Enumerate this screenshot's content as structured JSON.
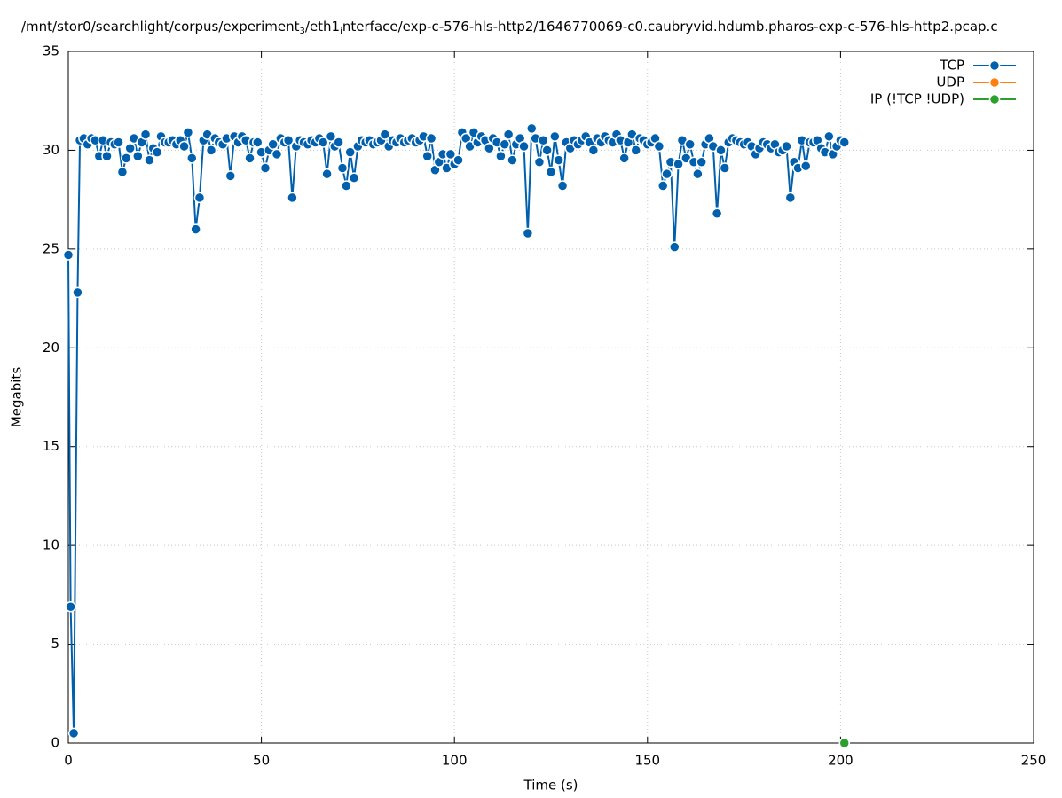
{
  "chart_data": {
    "type": "line",
    "title": [
      "/mnt/stor0/searchlight/corpus/experiment",
      "3",
      "/eth1",
      "i",
      "nterface/exp-c-576-hls-http2/1646770069-c0.caubryvid.hdumb.pharos-exp-c-576-hls-http2.pcap.c"
    ],
    "x_label": "Time (s)",
    "y_label": "Megabits",
    "xlim": [
      0,
      250
    ],
    "xticks": [
      0,
      50,
      100,
      150,
      200,
      250
    ],
    "ylim": [
      0,
      35
    ],
    "yticks": [
      0,
      5,
      10,
      15,
      20,
      25,
      30,
      35
    ],
    "grid": true,
    "legend": "top-right",
    "series": [
      {
        "name": "TCP",
        "color": "#0060ad",
        "x": [
          0,
          0.6,
          1.4,
          2.4,
          3,
          4,
          5,
          6,
          7,
          8,
          9,
          10,
          11,
          12,
          13,
          14,
          15,
          16,
          17,
          18,
          19,
          20,
          21,
          22,
          23,
          24,
          25,
          26,
          27,
          28,
          29,
          30,
          31,
          32,
          33,
          34,
          35,
          36,
          37,
          38,
          39,
          40,
          41,
          42,
          43,
          44,
          45,
          46,
          47,
          48,
          49,
          50,
          51,
          52,
          53,
          54,
          55,
          56,
          57,
          58,
          59,
          60,
          61,
          62,
          63,
          64,
          65,
          66,
          67,
          68,
          69,
          70,
          71,
          72,
          73,
          74,
          75,
          76,
          77,
          78,
          79,
          80,
          81,
          82,
          83,
          84,
          85,
          86,
          87,
          88,
          89,
          90,
          91,
          92,
          93,
          94,
          95,
          96,
          97,
          98,
          99,
          100,
          101,
          102,
          103,
          104,
          105,
          106,
          107,
          108,
          109,
          110,
          111,
          112,
          113,
          114,
          115,
          116,
          117,
          118,
          119,
          120,
          121,
          122,
          123,
          124,
          125,
          126,
          127,
          128,
          129,
          130,
          131,
          132,
          133,
          134,
          135,
          136,
          137,
          138,
          139,
          140,
          141,
          142,
          143,
          144,
          145,
          146,
          147,
          148,
          149,
          150,
          151,
          152,
          153,
          154,
          155,
          156,
          157,
          158,
          159,
          160,
          161,
          162,
          163,
          164,
          165,
          166,
          167,
          168,
          169,
          170,
          171,
          172,
          173,
          174,
          175,
          176,
          177,
          178,
          179,
          180,
          181,
          182,
          183,
          184,
          185,
          186,
          187,
          188,
          189,
          190,
          191,
          192,
          193,
          194,
          195,
          196,
          197,
          198,
          199,
          200,
          201
        ],
        "values": [
          24.7,
          6.9,
          0.5,
          22.8,
          30.5,
          30.6,
          30.3,
          30.6,
          30.5,
          29.7,
          30.5,
          29.7,
          30.4,
          30.3,
          30.4,
          28.9,
          29.6,
          30.1,
          30.6,
          29.7,
          30.4,
          30.8,
          29.5,
          30.1,
          29.9,
          30.7,
          30.4,
          30.4,
          30.5,
          30.3,
          30.5,
          30.2,
          30.9,
          29.6,
          26.0,
          27.6,
          30.5,
          30.8,
          30.0,
          30.6,
          30.4,
          30.3,
          30.6,
          28.7,
          30.7,
          30.4,
          30.7,
          30.5,
          29.6,
          30.4,
          30.4,
          29.9,
          29.1,
          30.0,
          30.3,
          29.8,
          30.6,
          30.4,
          30.5,
          27.6,
          30.2,
          30.5,
          30.4,
          30.3,
          30.5,
          30.4,
          30.6,
          30.4,
          28.8,
          30.7,
          30.2,
          30.4,
          29.1,
          28.2,
          29.9,
          28.6,
          30.2,
          30.5,
          30.4,
          30.5,
          30.3,
          30.4,
          30.5,
          30.8,
          30.2,
          30.5,
          30.4,
          30.6,
          30.4,
          30.5,
          30.6,
          30.4,
          30.5,
          30.7,
          29.7,
          30.6,
          29.0,
          29.4,
          29.8,
          29.1,
          29.8,
          29.3,
          29.5,
          30.9,
          30.6,
          30.2,
          30.9,
          30.4,
          30.7,
          30.5,
          30.1,
          30.6,
          30.4,
          29.7,
          30.3,
          30.8,
          29.5,
          30.3,
          30.6,
          30.2,
          25.8,
          31.1,
          30.6,
          29.4,
          30.5,
          30.0,
          28.9,
          30.7,
          29.5,
          28.2,
          30.4,
          30.1,
          30.5,
          30.3,
          30.5,
          30.7,
          30.4,
          30.0,
          30.6,
          30.4,
          30.7,
          30.5,
          30.4,
          30.8,
          30.5,
          29.6,
          30.4,
          30.8,
          30.0,
          30.6,
          30.5,
          30.3,
          30.4,
          30.6,
          30.2,
          28.2,
          28.8,
          29.4,
          25.1,
          29.3,
          30.5,
          29.6,
          30.3,
          29.4,
          28.8,
          29.4,
          30.3,
          30.6,
          30.2,
          26.8,
          30.0,
          29.1,
          30.4,
          30.6,
          30.5,
          30.4,
          30.3,
          30.4,
          30.2,
          29.8,
          30.1,
          30.4,
          30.3,
          30.1,
          30.3,
          29.9,
          30.0,
          30.2,
          27.6,
          29.4,
          29.1,
          30.5,
          29.2,
          30.4,
          30.4,
          30.5,
          30.1,
          29.9,
          30.7,
          29.8,
          30.2,
          30.5,
          30.4
        ]
      },
      {
        "name": "UDP",
        "color": "#ff7f0e",
        "x": [],
        "values": []
      },
      {
        "name": "IP (!TCP  !UDP)",
        "color": "#2ca02c",
        "x": [
          201
        ],
        "values": [
          0
        ]
      }
    ]
  }
}
